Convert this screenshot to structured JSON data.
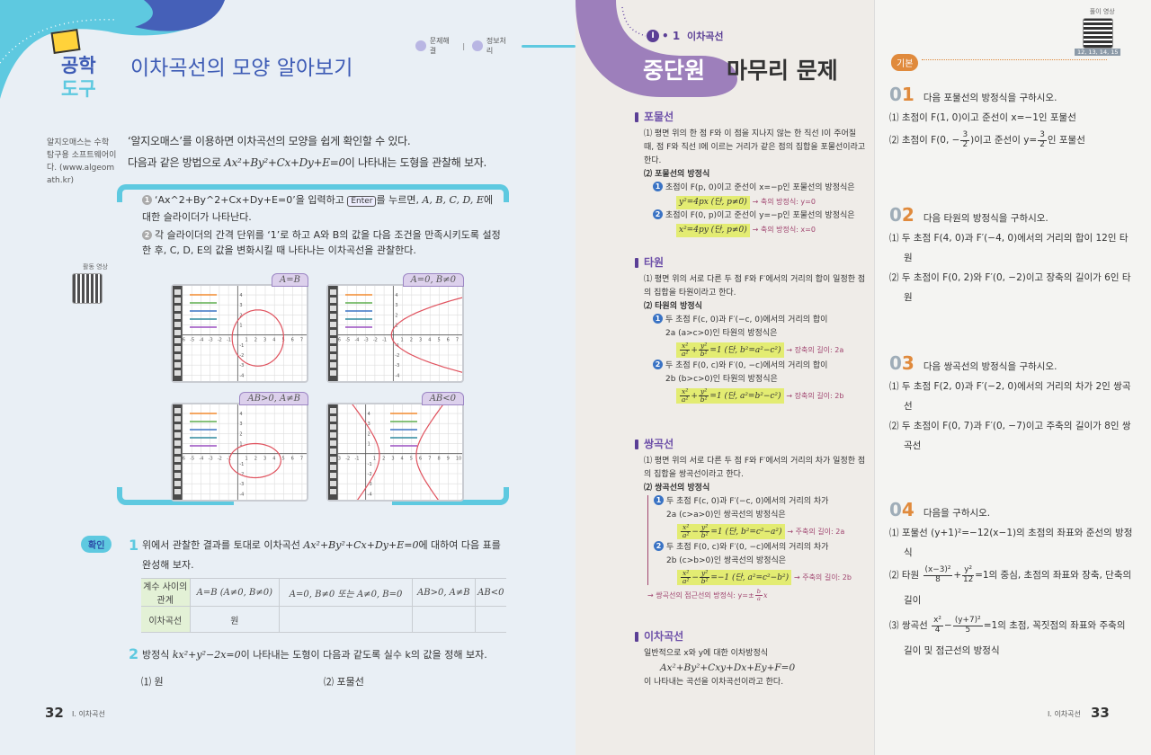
{
  "left": {
    "badge": {
      "line1": "공학",
      "line2": "도구"
    },
    "title": "이차곡선의 모양 알아보기",
    "tags": [
      "문제해결",
      "정보처리"
    ],
    "side_note": "알지오매스는 수학 탐구용 소프트웨어이다. (www.algeomath.kr)",
    "intro1": "‘알지오매스’를 이용하면 이차곡선의 모양을 쉽게 확인할 수 있다.",
    "intro2a": "다음과 같은 방법으로 ",
    "intro2m": "Ax²+By²+Cx+Dy+E=0",
    "intro2b": "이 나타내는 도형을 관찰해 보자.",
    "step1a": "‘Ax^2+By^2+Cx+Dy+E=0’을 입력하고 ",
    "enter_key": "Enter",
    "step1b": "를 누르면, ",
    "step1m": "A, B, C, D, E",
    "step1c": "에 대한 슬라이더가 나타난다.",
    "step2": "각 슬라이더의 간격 단위를 ‘1’로 하고 A와 B의 값을 다음 조건을 만족시키도록 설정한 후, C, D, E의 값을 변화시킬 때 나타나는 이차곡선을 관찰한다.",
    "qr_label": "활동 영상",
    "panels": [
      {
        "label": "A=B",
        "x_range": [
          -6,
          7.5
        ],
        "y_range": [
          -4.6,
          4.9
        ],
        "curve": {
          "type": "circle",
          "cx": 2.2,
          "cy": -0.3,
          "r": 2.8
        },
        "curve_color": "#e0525e"
      },
      {
        "label": "A=0, B≠0",
        "x_range": [
          -6,
          7.5
        ],
        "y_range": [
          -4.6,
          4.9
        ],
        "curve": {
          "type": "parabola",
          "vx": -0.2,
          "vy": 0,
          "k": 1.8
        },
        "curve_color": "#e0525e"
      },
      {
        "label": "AB>0, A≠B",
        "x_range": [
          -6,
          7.5
        ],
        "y_range": [
          -4.6,
          4.9
        ],
        "curve": {
          "type": "ellipse",
          "cx": 1.9,
          "cy": -0.7,
          "rx": 2.8,
          "ry": 1.7
        },
        "curve_color": "#e0525e"
      },
      {
        "label": "AB<0",
        "x_range": [
          -3,
          10.5
        ],
        "y_range": [
          -4.6,
          4.9
        ],
        "curve": {
          "type": "hyperbola",
          "cx": 3.5,
          "cy": -0.2,
          "a": 2,
          "b": 1.13
        },
        "curve_color": "#e0525e"
      }
    ],
    "slider_colors": [
      "#f28a2e",
      "#5fae4e",
      "#3a73c4",
      "#2f8a9e",
      "#9a4fc0"
    ],
    "check_badge": "확인",
    "q1_num": "1",
    "q1a": "위에서 관찰한 결과를 토대로 이차곡선 ",
    "q1m": "Ax²+By²+Cx+Dy+E=0",
    "q1b": "에 대하여 다음 표를 완성해 보자.",
    "table": {
      "row_headers": [
        "계수 사이의 관계",
        "이차곡선"
      ],
      "columns": [
        "A=B (A≠0, B≠0)",
        "A=0, B≠0 또는 A≠0, B=0",
        "AB>0, A≠B",
        "AB<0"
      ],
      "answers": [
        "원",
        "",
        "",
        ""
      ]
    },
    "q2_num": "2",
    "q2a": "방정식 ",
    "q2m": "kx²+y²−2x=0",
    "q2b": "이 나타내는 도형이 다음과 같도록 실수 k의 값을 정해 보자.",
    "q2_items": [
      "⑴ 원",
      "⑵ 포물선"
    ],
    "page_num": "32",
    "chapter": "Ⅰ. 이차곡선"
  },
  "mid": {
    "unit": "Ⅰ",
    "unit_sub": "• 1",
    "unit_title": "이차곡선",
    "title_a": "중단원",
    "title_b": "마무리 문제",
    "parabola": {
      "h": "포물선",
      "d1": "⑴ 평면 위의 한 점 F와 이 점을 지나지 않는 한 직선 l이 주어질 때, 점 F와 직선 l에 이르는 거리가 같은 점의 집합을 포물선이라고 한다.",
      "d2": "⑵ 포물선의 방정식",
      "i1": "초점이 F(p, 0)이고 준선이 x=−p인 포물선의 방정식은",
      "f1": "y²=4px (단, p≠0)",
      "n1": "→ 축의 방정식: y=0",
      "i2": "초점이 F(0, p)이고 준선이 y=−p인 포물선의 방정식은",
      "f2": "x²=4py (단, p≠0)",
      "n2": "→ 축의 방정식: x=0"
    },
    "ellipse": {
      "h": "타원",
      "d1": "⑴ 평면 위의 서로 다른 두 점 F와 F′에서의 거리의 합이 일정한 점의 집합을 타원이라고 한다.",
      "d2": "⑵ 타원의 방정식",
      "i1a": "두 초점 F(c, 0)과 F′(−c, 0)에서의 거리의 합이",
      "i1b": "2a (a>c>0)인 타원의 방정식은",
      "f1": {
        "n1": "x²",
        "d1": "a²",
        "op": "+",
        "n2": "y²",
        "d2": "b²",
        "rest": "=1 (단, b²=a²−c²)"
      },
      "n1": "→ 장축의 길이: 2a",
      "i2a": "두 초점 F(0, c)와 F′(0, −c)에서의 거리의 합이",
      "i2b": "2b (b>c>0)인 타원의 방정식은",
      "f2": {
        "n1": "x²",
        "d1": "a²",
        "op": "+",
        "n2": "y²",
        "d2": "b²",
        "rest": "=1 (단, a²=b²−c²)"
      },
      "n2": "→ 장축의 길이: 2b"
    },
    "hyperbola": {
      "h": "쌍곡선",
      "d1": "⑴ 평면 위의 서로 다른 두 점 F와 F′에서의 거리의 차가 일정한 점의 집합을 쌍곡선이라고 한다.",
      "d2": "⑵ 쌍곡선의 방정식",
      "i1a": "두 초점 F(c, 0)과 F′(−c, 0)에서의 거리의 차가",
      "i1b": "2a (c>a>0)인 쌍곡선의 방정식은",
      "f1": {
        "n1": "x²",
        "d1": "a²",
        "op": "−",
        "n2": "y²",
        "d2": "b²",
        "rest": "=1 (단, b²=c²−a²)"
      },
      "n1": "→ 주축의 길이: 2a",
      "i2a": "두 초점 F(0, c)와 F′(0, −c)에서의 거리의 차가",
      "i2b": "2b (c>b>0)인 쌍곡선의 방정식은",
      "f2": {
        "n1": "x²",
        "d1": "a²",
        "op": "−",
        "n2": "y²",
        "d2": "b²",
        "rest": "=−1 (단, a²=c²−b²)"
      },
      "n2": "→ 주축의 길이: 2b",
      "asym": "→ 쌍곡선의 점근선의 방정식: y=±",
      "asym_n": "b",
      "asym_d": "a",
      "asym_x": "x"
    },
    "conic": {
      "h": "이차곡선",
      "l1": "일반적으로 x와 y에 대한 이차방정식",
      "l2": "Ax²+By²+Cxy+Dx+Ey+F=0",
      "l3": "이 나타내는 곡선을 이차곡선이라고 한다."
    }
  },
  "right": {
    "qr_label": "풀이 영상",
    "qr_pages": "12, 13, 14, 15",
    "level": "기본",
    "p1": {
      "n": "0",
      "nb": "1",
      "q": "다음 포물선의 방정식을 구하시오.",
      "a": "⑴ 초점이 F(1, 0)이고 준선이 x=−1인 포물선",
      "b1": "⑵ 초점이 F(0, −",
      "bn": "3",
      "bd": "2",
      "b2": ")이고 준선이 y=",
      "b3": "인 포물선"
    },
    "p2": {
      "n": "0",
      "nb": "2",
      "q": "다음 타원의 방정식을 구하시오.",
      "a": "⑴ 두 초점 F(4, 0)과 F′(−4, 0)에서의 거리의 합이 12인 타원",
      "b": "⑵ 두 초점이 F(0, 2)와 F′(0, −2)이고 장축의 길이가 6인 타원"
    },
    "p3": {
      "n": "0",
      "nb": "3",
      "q": "다음 쌍곡선의 방정식을 구하시오.",
      "a": "⑴ 두 초점 F(2, 0)과 F′(−2, 0)에서의 거리의 차가 2인 쌍곡선",
      "b": "⑵ 두 초점이 F(0, 7)과 F′(0, −7)이고 주축의 길이가 8인 쌍곡선"
    },
    "p4": {
      "n": "0",
      "nb": "4",
      "q": "다음을 구하시오.",
      "a": "⑴ 포물선 (y+1)²=−12(x−1)의 초점의 좌표와 준선의 방정식",
      "b1": "⑵ 타원 ",
      "bn1": "(x−3)²",
      "bd1": "8",
      "bop": "+",
      "bn2": "y²",
      "bd2": "12",
      "b2": "=1의 중심, 초점의 좌표와 장축, 단축의 길이",
      "c1": "⑶ 쌍곡선 ",
      "cn1": "x²",
      "cd1": "4",
      "cop": "−",
      "cn2": "(y+7)²",
      "cd2": "5",
      "c2": "=1의 초점, 꼭짓점의 좌표와 주축의 길이 및 점근선의 방정식"
    },
    "chapter": "Ⅰ. 이차곡선",
    "page_num": "33"
  },
  "colors": {
    "blue": "#3d5bb5",
    "cyan": "#5ec9e0",
    "purple": "#9d7fbb",
    "highlight": "#e3ec72",
    "orange": "#e08a3c"
  }
}
